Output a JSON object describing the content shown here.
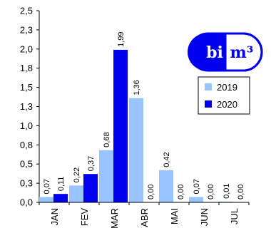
{
  "chart_data": {
    "type": "bar",
    "categories": [
      "JAN",
      "FEV",
      "MAR",
      "ABR",
      "MAI",
      "JUN",
      "JUL"
    ],
    "series": [
      {
        "name": "2019",
        "color": "#99c4ff",
        "values": [
          0.07,
          0.22,
          0.68,
          1.36,
          0.42,
          0.07,
          0.01
        ],
        "labels": [
          "0,07",
          "0,22",
          "0,68",
          "1,36",
          "0,42",
          "0,07",
          "0,01"
        ]
      },
      {
        "name": "2020",
        "color": "#0000ee",
        "values": [
          0.11,
          0.37,
          1.99,
          0.0,
          0.0,
          0.0,
          0.0
        ],
        "labels": [
          "0,11",
          "0,37",
          "1,99",
          "0,00",
          "0,00",
          "0,00",
          "0,00"
        ]
      }
    ],
    "y_ticks": [
      "0,0",
      "0,3",
      "0,5",
      "0,8",
      "1,0",
      "1,3",
      "1,5",
      "1,8",
      "2,0",
      "2,3",
      "2,5"
    ],
    "ylim": [
      0,
      2.5
    ],
    "grid": false,
    "legend_position": "right",
    "title": "",
    "xlabel": "",
    "ylabel": ""
  },
  "logo": {
    "left": "bi",
    "right": "m³",
    "color": "#0000ee"
  }
}
